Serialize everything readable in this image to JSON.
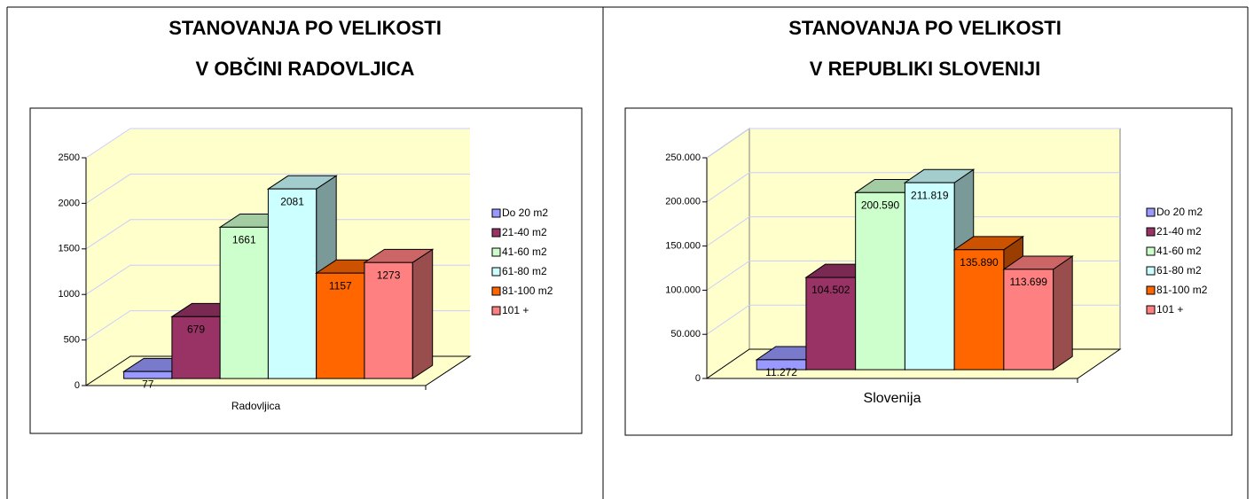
{
  "chart_data": [
    {
      "type": "bar3d",
      "title": "STANOVANJA PO VELIKOSTI",
      "subtitle": "V OBČINI RADOVLJICA",
      "categories": [
        "Radovljica"
      ],
      "series": [
        {
          "name": "Do 20 m2",
          "color": "#9999ff",
          "values": [
            77
          ]
        },
        {
          "name": "21-40 m2",
          "color": "#993366",
          "values": [
            679
          ]
        },
        {
          "name": "41-60 m2",
          "color": "#ccffcc",
          "values": [
            1661
          ]
        },
        {
          "name": "61-80 m2",
          "color": "#ccffff",
          "values": [
            2081
          ]
        },
        {
          "name": "81-100 m2",
          "color": "#ff6600",
          "values": [
            1157
          ]
        },
        {
          "name": "101 +",
          "color": "#ff8080",
          "values": [
            1273
          ]
        }
      ],
      "ylim": [
        0,
        2500
      ],
      "yticks": [
        0,
        500,
        1000,
        1500,
        2000,
        2500
      ],
      "grid": true,
      "legend": "right"
    },
    {
      "type": "bar3d",
      "title": "STANOVANJA PO VELIKOSTI",
      "subtitle": "V REPUBLIKI SLOVENIJI",
      "categories": [
        "Slovenija"
      ],
      "series": [
        {
          "name": "Do 20 m2",
          "color": "#9999ff",
          "values": [
            11272
          ],
          "value_labels": [
            "11.272"
          ]
        },
        {
          "name": "21-40 m2",
          "color": "#993366",
          "values": [
            104502
          ],
          "value_labels": [
            "104.502"
          ]
        },
        {
          "name": "41-60 m2",
          "color": "#ccffcc",
          "values": [
            200590
          ],
          "value_labels": [
            "200.590"
          ]
        },
        {
          "name": "61-80 m2",
          "color": "#ccffff",
          "values": [
            211819
          ],
          "value_labels": [
            "211.819"
          ]
        },
        {
          "name": "81-100 m2",
          "color": "#ff6600",
          "values": [
            135890
          ],
          "value_labels": [
            "135.890"
          ]
        },
        {
          "name": "101 +",
          "color": "#ff8080",
          "values": [
            113699
          ],
          "value_labels": [
            "113.699"
          ]
        }
      ],
      "ylim": [
        0,
        250000
      ],
      "yticks": [
        {
          "value": 0,
          "label": "0"
        },
        {
          "value": 50000,
          "label": "50.000"
        },
        {
          "value": 100000,
          "label": "100.000"
        },
        {
          "value": 150000,
          "label": "150.000"
        },
        {
          "value": 200000,
          "label": "200.000"
        },
        {
          "value": 250000,
          "label": "250.000"
        }
      ],
      "grid": true,
      "legend": "right"
    }
  ]
}
